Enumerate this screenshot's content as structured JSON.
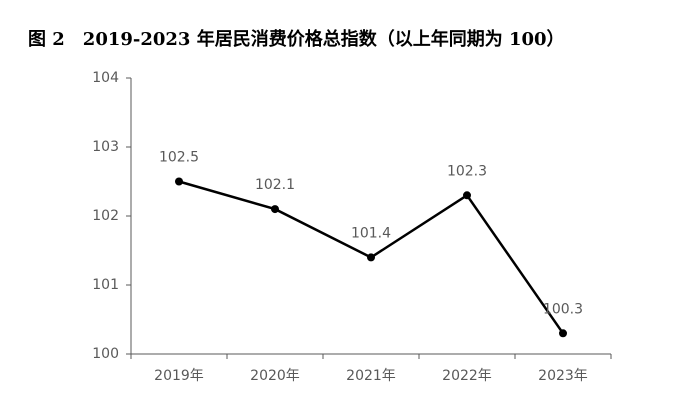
{
  "chart_data": {
    "type": "line",
    "title": "图 2　2019-2023 年居民消费价格总指数（以上年同期为 100）",
    "categories": [
      "2019年",
      "2020年",
      "2021年",
      "2022年",
      "2023年"
    ],
    "values": [
      102.5,
      102.1,
      101.4,
      102.3,
      100.3
    ],
    "color": "#000000",
    "ylim": [
      100,
      104
    ],
    "yticks": [
      100,
      101,
      102,
      103,
      104
    ],
    "grid": false,
    "data_labels": true
  }
}
